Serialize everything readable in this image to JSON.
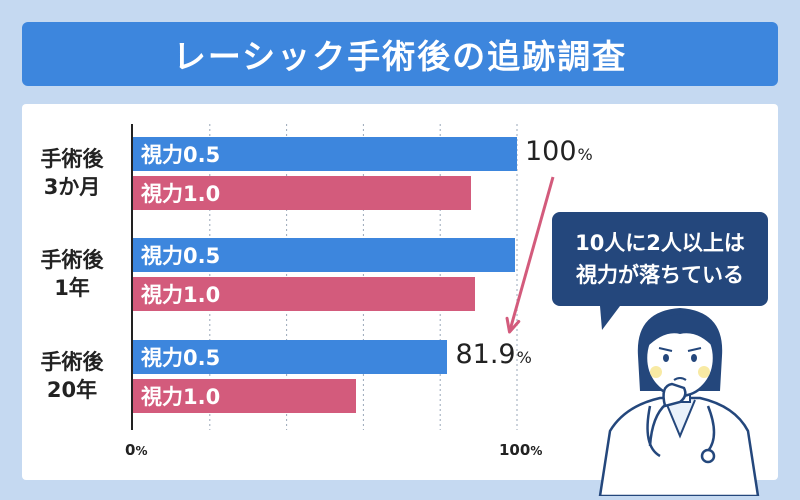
{
  "title": "レーシック手術後の追跡調査",
  "chart_data": {
    "type": "bar",
    "orientation": "horizontal",
    "groups": [
      {
        "label_lines": [
          "手術後",
          "3か月"
        ],
        "bars": [
          {
            "label": "視力0.5",
            "value": 100
          },
          {
            "label": "視力1.0",
            "value": 88
          }
        ]
      },
      {
        "label_lines": [
          "手術後",
          "1年"
        ],
        "bars": [
          {
            "label": "視力0.5",
            "value": 99.5
          },
          {
            "label": "視力1.0",
            "value": 89
          }
        ]
      },
      {
        "label_lines": [
          "手術後",
          "20年"
        ],
        "bars": [
          {
            "label": "視力0.5",
            "value": 81.9
          },
          {
            "label": "視力1.0",
            "value": 58
          }
        ]
      }
    ],
    "series_colors": [
      "#3d86dd",
      "#d35b7c"
    ],
    "xlim": [
      0,
      100
    ],
    "x_ticks": [
      {
        "text": "0",
        "unit": "%"
      },
      {
        "text": "100",
        "unit": "%"
      }
    ],
    "annotations": [
      {
        "text": "100",
        "unit": "%",
        "group": 0,
        "bar": 0
      },
      {
        "text": "81.9",
        "unit": "%",
        "group": 2,
        "bar": 0
      }
    ],
    "gridlines": "dotted",
    "arrow_color": "#d35b7c"
  },
  "callout": {
    "line1": "10人に2人以上は",
    "line2": "視力が落ちている"
  }
}
